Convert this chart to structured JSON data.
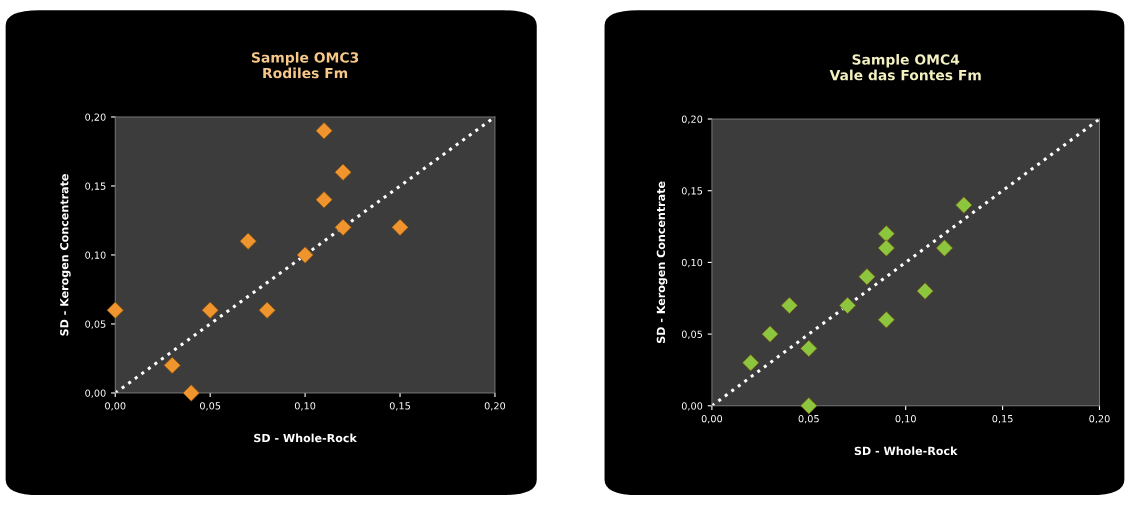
{
  "chart_data": [
    {
      "type": "scatter",
      "title": "Sample OMC3\nRodiles Fm",
      "xlabel": "SD - Whole-Rock",
      "ylabel": "SD - Kerogen Concentrate",
      "marker": "diamond",
      "grid": false,
      "legend": false,
      "xlim": [
        0,
        0.2
      ],
      "ylim": [
        0,
        0.2
      ],
      "xticks": [
        {
          "value": 0,
          "label": "0,00"
        },
        {
          "value": 0.05,
          "label": "0,05"
        },
        {
          "value": 0.1,
          "label": "0,10"
        },
        {
          "value": 0.15,
          "label": "0,15"
        },
        {
          "value": 0.2,
          "label": "0,20"
        }
      ],
      "yticks": [
        {
          "value": 0,
          "label": "0,00"
        },
        {
          "value": 0.05,
          "label": "0,05"
        },
        {
          "value": 0.1,
          "label": "0,10"
        },
        {
          "value": 0.15,
          "label": "0,15"
        },
        {
          "value": 0.2,
          "label": "0,20"
        }
      ],
      "series": [
        {
          "type": "line",
          "line_style": "dotted",
          "marker": "none",
          "color": "#ffffff",
          "x": [
            0,
            0.2
          ],
          "values": [
            0,
            0.2
          ]
        },
        {
          "color": "#f0952e",
          "x": [
            0,
            0.03,
            0.04,
            0.05,
            0.07,
            0.08,
            0.1,
            0.11,
            0.11,
            0.12,
            0.12,
            0.15
          ],
          "values": [
            0.06,
            0.02,
            0,
            0.06,
            0.11,
            0.06,
            0.1,
            0.19,
            0.14,
            0.16,
            0.12,
            0.12
          ]
        }
      ]
    },
    {
      "type": "scatter",
      "title": "Sample OMC4\nVale das Fontes Fm",
      "xlabel": "SD - Whole-Rock",
      "ylabel": "SD - Kerogen Concentrate",
      "marker": "diamond",
      "grid": false,
      "legend": false,
      "xlim": [
        0,
        0.2
      ],
      "ylim": [
        0,
        0.2
      ],
      "xticks": [
        {
          "value": 0,
          "label": "0,00"
        },
        {
          "value": 0.05,
          "label": "0,05"
        },
        {
          "value": 0.1,
          "label": "0,10"
        },
        {
          "value": 0.15,
          "label": "0,15"
        },
        {
          "value": 0.2,
          "label": "0,20"
        }
      ],
      "yticks": [
        {
          "value": 0,
          "label": "0,00"
        },
        {
          "value": 0.05,
          "label": "0,05"
        },
        {
          "value": 0.1,
          "label": "0,10"
        },
        {
          "value": 0.15,
          "label": "0,15"
        },
        {
          "value": 0.2,
          "label": "0,20"
        }
      ],
      "series": [
        {
          "type": "line",
          "line_style": "dotted",
          "marker": "none",
          "color": "#ffffff",
          "x": [
            0,
            0.2
          ],
          "values": [
            0,
            0.2
          ]
        },
        {
          "color": "#8cc63f",
          "x": [
            0.02,
            0.03,
            0.04,
            0.05,
            0.05,
            0.07,
            0.08,
            0.09,
            0.09,
            0.09,
            0.11,
            0.12,
            0.13
          ],
          "values": [
            0.03,
            0.05,
            0.07,
            0.04,
            0,
            0.07,
            0.09,
            0.12,
            0.11,
            0.06,
            0.08,
            0.11,
            0.14
          ]
        }
      ]
    }
  ]
}
